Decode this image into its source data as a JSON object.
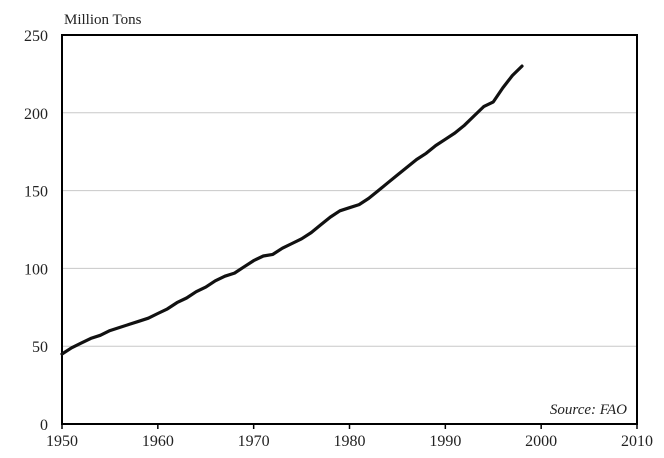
{
  "chart_data": {
    "type": "line",
    "title": "",
    "unit_label": "Million Tons",
    "xlabel": "",
    "ylabel": "",
    "source": "Source: FAO",
    "xlim": [
      1950,
      2010
    ],
    "ylim": [
      0,
      250
    ],
    "x_ticks": [
      1950,
      1960,
      1970,
      1980,
      1990,
      2000,
      2010
    ],
    "x_tick_labels": [
      "1950",
      "1960",
      "1970",
      "1980",
      "1990",
      "2000",
      "2010"
    ],
    "y_ticks": [
      0,
      50,
      100,
      150,
      200,
      250
    ],
    "y_tick_labels": [
      "0",
      "50",
      "100",
      "150",
      "200",
      "250"
    ],
    "grid": "horizontal",
    "legend": "none",
    "colors": {
      "line": "#111111",
      "grid": "#c8c8c8",
      "frame": "#000000"
    },
    "series": [
      {
        "x": [
          1950,
          1951,
          1952,
          1953,
          1954,
          1955,
          1956,
          1957,
          1958,
          1959,
          1960,
          1961,
          1962,
          1963,
          1964,
          1965,
          1966,
          1967,
          1968,
          1969,
          1970,
          1971,
          1972,
          1973,
          1974,
          1975,
          1976,
          1977,
          1978,
          1979,
          1980,
          1981,
          1982,
          1983,
          1984,
          1985,
          1986,
          1987,
          1988,
          1989,
          1990,
          1991,
          1992,
          1993,
          1994,
          1995,
          1996,
          1997,
          1998
        ],
        "y": [
          45,
          49,
          52,
          55,
          57,
          60,
          62,
          64,
          66,
          68,
          71,
          74,
          78,
          81,
          85,
          88,
          92,
          95,
          97,
          101,
          105,
          108,
          109,
          113,
          116,
          119,
          123,
          128,
          133,
          137,
          139,
          141,
          145,
          150,
          155,
          160,
          165,
          170,
          174,
          179,
          183,
          187,
          192,
          198,
          204,
          207,
          216,
          224,
          230
        ]
      }
    ]
  }
}
